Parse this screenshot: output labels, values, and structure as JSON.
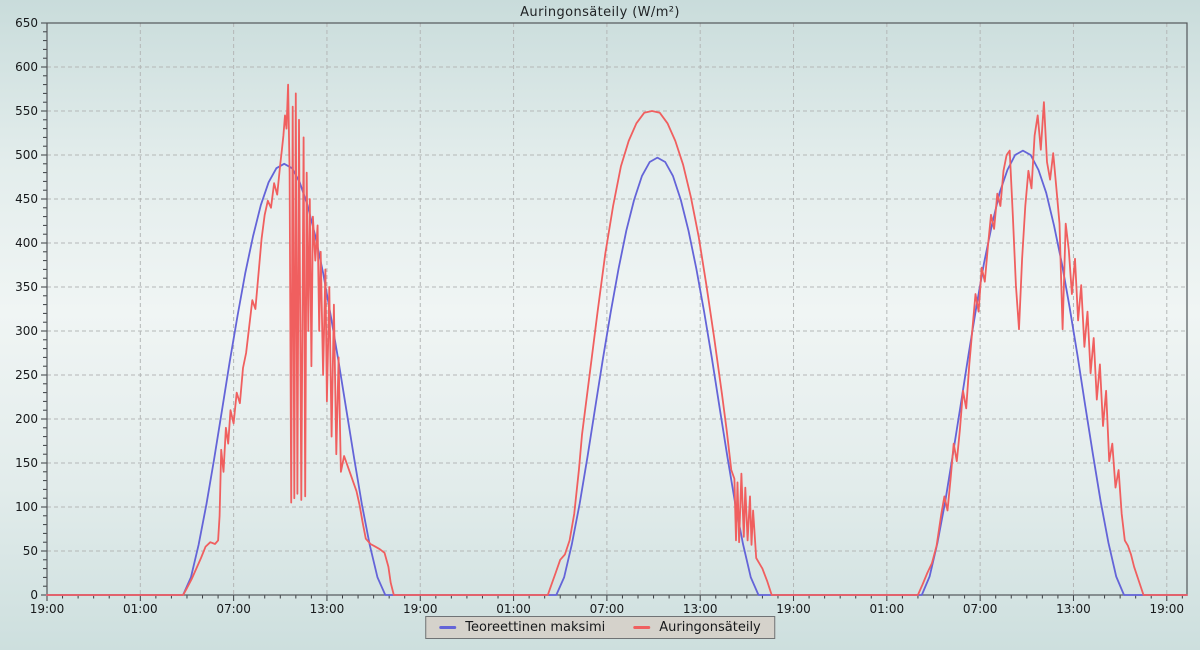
{
  "title": "Auringonsäteily (W/m²)",
  "colors": {
    "background_top": "#c9dcdb",
    "background_mid": "#f0f5f4",
    "background_bottom": "#cddfde",
    "plot_border": "#53575b",
    "grid": "#b4b7b7",
    "tick": "#3a3e42",
    "text": "#17191b",
    "legend_bg": "#d5d2cb",
    "legend_border": "#6f7375",
    "series_blue": "#6464d8",
    "series_red": "#f05f5f"
  },
  "legend": {
    "items": [
      {
        "label": "Teoreettinen maksimi",
        "color": "#6464d8"
      },
      {
        "label": "Auringonsäteily",
        "color": "#f05f5f"
      }
    ]
  },
  "chart_data": {
    "type": "line",
    "title": "Auringonsäteily (W/m²)",
    "xlabel": "",
    "ylabel": "",
    "x_unit": "hours from first 19:00 tick, spanning 3 days",
    "x_range_hours": [
      0,
      73.3
    ],
    "x_major_tick_interval_h": 6,
    "x_minor_tick_interval_h": 1,
    "x_tick_hours": [
      0,
      6,
      12,
      18,
      24,
      30,
      36,
      42,
      48,
      54,
      60,
      66,
      72
    ],
    "x_tick_labels": [
      "19:00",
      "01:00",
      "07:00",
      "13:00",
      "19:00",
      "01:00",
      "07:00",
      "13:00",
      "19:00",
      "01:00",
      "07:00",
      "13:00",
      "19:00"
    ],
    "ylim": [
      0,
      650
    ],
    "y_major_tick_interval": 50,
    "y_minor_tick_interval": 10,
    "y_tick_labels": [
      "0",
      "50",
      "100",
      "150",
      "200",
      "250",
      "300",
      "350",
      "400",
      "450",
      "500",
      "550",
      "600",
      "650"
    ],
    "grid": true,
    "grid_style": "dashed",
    "legend_position": "bottom-center",
    "series": [
      {
        "name": "Teoreettinen maksimi",
        "color": "#6464d8",
        "points": [
          [
            0,
            0
          ],
          [
            8.75,
            0
          ],
          [
            9.25,
            20
          ],
          [
            9.75,
            57
          ],
          [
            10.25,
            103
          ],
          [
            10.75,
            155
          ],
          [
            11.25,
            210
          ],
          [
            11.75,
            265
          ],
          [
            12.25,
            317
          ],
          [
            12.75,
            366
          ],
          [
            13.25,
            408
          ],
          [
            13.75,
            443
          ],
          [
            14.25,
            469
          ],
          [
            14.75,
            485
          ],
          [
            15.25,
            490
          ],
          [
            15.75,
            485
          ],
          [
            16.25,
            469
          ],
          [
            16.75,
            443
          ],
          [
            17.25,
            408
          ],
          [
            17.75,
            366
          ],
          [
            18.25,
            317
          ],
          [
            18.75,
            265
          ],
          [
            19.25,
            210
          ],
          [
            19.75,
            155
          ],
          [
            20.25,
            103
          ],
          [
            20.75,
            57
          ],
          [
            21.25,
            20
          ],
          [
            21.75,
            0
          ],
          [
            32.75,
            0
          ],
          [
            33.25,
            20
          ],
          [
            33.75,
            58
          ],
          [
            34.25,
            104
          ],
          [
            34.75,
            157
          ],
          [
            35.25,
            213
          ],
          [
            35.75,
            269
          ],
          [
            36.25,
            322
          ],
          [
            36.75,
            371
          ],
          [
            37.25,
            414
          ],
          [
            37.75,
            449
          ],
          [
            38.25,
            476
          ],
          [
            38.75,
            492
          ],
          [
            39.25,
            497
          ],
          [
            39.75,
            492
          ],
          [
            40.25,
            476
          ],
          [
            40.75,
            449
          ],
          [
            41.25,
            414
          ],
          [
            41.75,
            371
          ],
          [
            42.25,
            322
          ],
          [
            42.75,
            269
          ],
          [
            43.25,
            213
          ],
          [
            43.75,
            157
          ],
          [
            44.25,
            104
          ],
          [
            44.75,
            58
          ],
          [
            45.25,
            20
          ],
          [
            45.75,
            0
          ],
          [
            56.25,
            0
          ],
          [
            56.75,
            21
          ],
          [
            57.25,
            59
          ],
          [
            57.75,
            106
          ],
          [
            58.25,
            160
          ],
          [
            58.75,
            216
          ],
          [
            59.25,
            273
          ],
          [
            59.75,
            327
          ],
          [
            60.25,
            377
          ],
          [
            60.75,
            420
          ],
          [
            61.25,
            457
          ],
          [
            61.75,
            483
          ],
          [
            62.25,
            500
          ],
          [
            62.75,
            505
          ],
          [
            63.25,
            500
          ],
          [
            63.75,
            483
          ],
          [
            64.25,
            457
          ],
          [
            64.75,
            420
          ],
          [
            65.25,
            377
          ],
          [
            65.75,
            327
          ],
          [
            66.25,
            273
          ],
          [
            66.75,
            216
          ],
          [
            67.25,
            160
          ],
          [
            67.75,
            106
          ],
          [
            68.25,
            59
          ],
          [
            68.75,
            21
          ],
          [
            69.25,
            0
          ],
          [
            73.3,
            0
          ]
        ]
      },
      {
        "name": "Auringonsäteily",
        "color": "#f05f5f",
        "points": [
          [
            0,
            0
          ],
          [
            8.75,
            0
          ],
          [
            9,
            8
          ],
          [
            9.3,
            18
          ],
          [
            9.6,
            30
          ],
          [
            9.9,
            42
          ],
          [
            10.2,
            55
          ],
          [
            10.5,
            60
          ],
          [
            10.8,
            58
          ],
          [
            11,
            62
          ],
          [
            11.1,
            90
          ],
          [
            11.2,
            165
          ],
          [
            11.35,
            140
          ],
          [
            11.5,
            190
          ],
          [
            11.65,
            172
          ],
          [
            11.8,
            210
          ],
          [
            12,
            195
          ],
          [
            12.2,
            230
          ],
          [
            12.4,
            218
          ],
          [
            12.6,
            258
          ],
          [
            12.8,
            275
          ],
          [
            13,
            305
          ],
          [
            13.2,
            335
          ],
          [
            13.4,
            325
          ],
          [
            13.6,
            365
          ],
          [
            13.8,
            405
          ],
          [
            14,
            432
          ],
          [
            14.2,
            448
          ],
          [
            14.4,
            440
          ],
          [
            14.6,
            468
          ],
          [
            14.8,
            455
          ],
          [
            15,
            490
          ],
          [
            15.1,
            505
          ],
          [
            15.2,
            522
          ],
          [
            15.3,
            545
          ],
          [
            15.4,
            530
          ],
          [
            15.5,
            580
          ],
          [
            15.6,
            480
          ],
          [
            15.7,
            105
          ],
          [
            15.8,
            555
          ],
          [
            15.9,
            110
          ],
          [
            16,
            570
          ],
          [
            16.1,
            115
          ],
          [
            16.2,
            540
          ],
          [
            16.35,
            108
          ],
          [
            16.5,
            520
          ],
          [
            16.6,
            112
          ],
          [
            16.7,
            480
          ],
          [
            16.8,
            300
          ],
          [
            16.9,
            450
          ],
          [
            17,
            260
          ],
          [
            17.1,
            430
          ],
          [
            17.25,
            380
          ],
          [
            17.4,
            420
          ],
          [
            17.5,
            300
          ],
          [
            17.6,
            390
          ],
          [
            17.75,
            250
          ],
          [
            17.9,
            370
          ],
          [
            18,
            220
          ],
          [
            18.15,
            350
          ],
          [
            18.3,
            180
          ],
          [
            18.45,
            330
          ],
          [
            18.6,
            160
          ],
          [
            18.75,
            270
          ],
          [
            18.9,
            140
          ],
          [
            19.1,
            158
          ],
          [
            19.3,
            148
          ],
          [
            19.5,
            138
          ],
          [
            19.7,
            128
          ],
          [
            19.9,
            118
          ],
          [
            20.1,
            102
          ],
          [
            20.3,
            82
          ],
          [
            20.5,
            64
          ],
          [
            20.8,
            58
          ],
          [
            21.1,
            55
          ],
          [
            21.4,
            52
          ],
          [
            21.7,
            48
          ],
          [
            21.95,
            32
          ],
          [
            22.1,
            14
          ],
          [
            22.3,
            0
          ],
          [
            32.2,
            0
          ],
          [
            32.4,
            10
          ],
          [
            32.7,
            25
          ],
          [
            33,
            40
          ],
          [
            33.3,
            46
          ],
          [
            33.6,
            62
          ],
          [
            33.9,
            92
          ],
          [
            34.2,
            142
          ],
          [
            34.4,
            182
          ],
          [
            34.9,
            252
          ],
          [
            35.4,
            322
          ],
          [
            35.9,
            388
          ],
          [
            36.4,
            442
          ],
          [
            36.9,
            487
          ],
          [
            37.4,
            516
          ],
          [
            37.9,
            536
          ],
          [
            38.4,
            548
          ],
          [
            38.9,
            550
          ],
          [
            39.4,
            548
          ],
          [
            39.9,
            536
          ],
          [
            40.4,
            516
          ],
          [
            40.9,
            489
          ],
          [
            41.4,
            452
          ],
          [
            41.9,
            407
          ],
          [
            42.4,
            352
          ],
          [
            42.9,
            292
          ],
          [
            43.4,
            228
          ],
          [
            43.7,
            188
          ],
          [
            44,
            142
          ],
          [
            44.2,
            132
          ],
          [
            44.3,
            62
          ],
          [
            44.4,
            128
          ],
          [
            44.5,
            60
          ],
          [
            44.65,
            138
          ],
          [
            44.8,
            66
          ],
          [
            44.9,
            122
          ],
          [
            45.05,
            62
          ],
          [
            45.2,
            112
          ],
          [
            45.3,
            57
          ],
          [
            45.4,
            96
          ],
          [
            45.6,
            42
          ],
          [
            45.8,
            36
          ],
          [
            46,
            30
          ],
          [
            46.3,
            16
          ],
          [
            46.6,
            0
          ],
          [
            56,
            0
          ],
          [
            56.3,
            12
          ],
          [
            56.6,
            25
          ],
          [
            56.9,
            36
          ],
          [
            57.2,
            56
          ],
          [
            57.5,
            92
          ],
          [
            57.7,
            112
          ],
          [
            57.9,
            96
          ],
          [
            58.1,
            132
          ],
          [
            58.3,
            172
          ],
          [
            58.5,
            152
          ],
          [
            58.7,
            188
          ],
          [
            58.9,
            232
          ],
          [
            59.1,
            212
          ],
          [
            59.3,
            262
          ],
          [
            59.5,
            302
          ],
          [
            59.7,
            342
          ],
          [
            59.9,
            322
          ],
          [
            60.1,
            372
          ],
          [
            60.3,
            356
          ],
          [
            60.5,
            396
          ],
          [
            60.7,
            432
          ],
          [
            60.9,
            416
          ],
          [
            61.1,
            456
          ],
          [
            61.3,
            442
          ],
          [
            61.5,
            482
          ],
          [
            61.7,
            500
          ],
          [
            61.9,
            505
          ],
          [
            62.1,
            432
          ],
          [
            62.3,
            352
          ],
          [
            62.5,
            302
          ],
          [
            62.7,
            382
          ],
          [
            62.9,
            442
          ],
          [
            63.1,
            482
          ],
          [
            63.3,
            462
          ],
          [
            63.5,
            522
          ],
          [
            63.7,
            545
          ],
          [
            63.9,
            506
          ],
          [
            64.1,
            560
          ],
          [
            64.3,
            492
          ],
          [
            64.5,
            472
          ],
          [
            64.7,
            502
          ],
          [
            64.9,
            462
          ],
          [
            65.1,
            422
          ],
          [
            65.3,
            302
          ],
          [
            65.5,
            422
          ],
          [
            65.7,
            392
          ],
          [
            65.9,
            342
          ],
          [
            66.1,
            382
          ],
          [
            66.3,
            312
          ],
          [
            66.5,
            352
          ],
          [
            66.7,
            282
          ],
          [
            66.9,
            322
          ],
          [
            67.1,
            252
          ],
          [
            67.3,
            292
          ],
          [
            67.5,
            222
          ],
          [
            67.7,
            262
          ],
          [
            67.9,
            192
          ],
          [
            68.1,
            232
          ],
          [
            68.3,
            152
          ],
          [
            68.5,
            172
          ],
          [
            68.7,
            122
          ],
          [
            68.9,
            142
          ],
          [
            69.1,
            92
          ],
          [
            69.3,
            62
          ],
          [
            69.5,
            56
          ],
          [
            69.7,
            46
          ],
          [
            69.9,
            32
          ],
          [
            70.2,
            16
          ],
          [
            70.5,
            0
          ],
          [
            73.3,
            0
          ]
        ]
      }
    ]
  }
}
